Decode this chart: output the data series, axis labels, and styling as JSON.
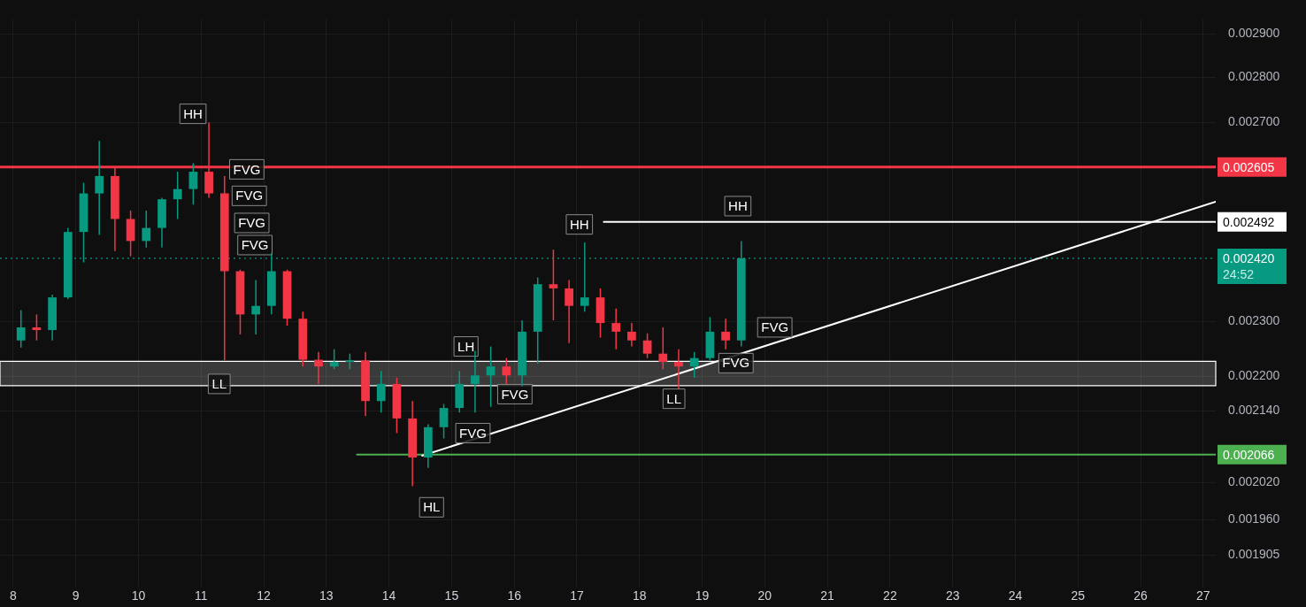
{
  "chart_data": {
    "type": "candlestick",
    "log": "y",
    "grid": true,
    "legend": false,
    "xlim": [
      7.79,
      27.2
    ],
    "ylim": [
      0.001857,
      0.002933
    ],
    "xticks": [
      8,
      9,
      10,
      11,
      12,
      13,
      14,
      15,
      16,
      17,
      18,
      19,
      20,
      21,
      22,
      23,
      24,
      25,
      26,
      27
    ],
    "yticks": [
      {
        "value": 0.0029,
        "label": "0.002900"
      },
      {
        "value": 0.0028,
        "label": "0.002800"
      },
      {
        "value": 0.0027,
        "label": "0.002700"
      },
      {
        "value": 0.0023,
        "label": "0.002300"
      },
      {
        "value": 0.0022,
        "label": "0.002200"
      },
      {
        "value": 0.00214,
        "label": "0.002140"
      },
      {
        "value": 0.00202,
        "label": "0.002020"
      },
      {
        "value": 0.00196,
        "label": "0.001960"
      },
      {
        "value": 0.001905,
        "label": "0.001905"
      }
    ],
    "series": [
      {
        "x": [
          8.125,
          8.375,
          8.625,
          8.875,
          9.125,
          9.375,
          9.625,
          9.875,
          10.125,
          10.375,
          10.625,
          10.875,
          11.125,
          11.375,
          11.625,
          11.875,
          12.125,
          12.375,
          12.625,
          12.875,
          13.125,
          13.375,
          13.625,
          13.875,
          14.125,
          14.375,
          14.625,
          14.875,
          15.125,
          15.375,
          15.625,
          15.875,
          16.125,
          16.375,
          16.625,
          16.875,
          17.125,
          17.375,
          17.625,
          17.875,
          18.125,
          18.375,
          18.625,
          18.875,
          19.125,
          19.375,
          19.625
        ],
        "ohlc": [
          [
            0.002265,
            0.002321,
            0.002252,
            0.002289
          ],
          [
            0.002289,
            0.002313,
            0.002265,
            0.002284
          ],
          [
            0.002284,
            0.00235,
            0.002265,
            0.002345
          ],
          [
            0.002345,
            0.00248,
            0.002342,
            0.002472
          ],
          [
            0.002472,
            0.002572,
            0.002412,
            0.00255
          ],
          [
            0.00255,
            0.00266,
            0.002466,
            0.002586
          ],
          [
            0.002586,
            0.002604,
            0.002434,
            0.002498
          ],
          [
            0.002498,
            0.002515,
            0.002424,
            0.002454
          ],
          [
            0.002454,
            0.002515,
            0.002441,
            0.00248
          ],
          [
            0.00248,
            0.002541,
            0.002441,
            0.002538
          ],
          [
            0.002538,
            0.002595,
            0.002498,
            0.002559
          ],
          [
            0.002559,
            0.002613,
            0.002527,
            0.002595
          ],
          [
            0.002595,
            0.0027,
            0.002541,
            0.00255
          ],
          [
            0.00255,
            0.002586,
            0.002229,
            0.002395
          ],
          [
            0.002395,
            0.002398,
            0.002276,
            0.002313
          ],
          [
            0.002313,
            0.002378,
            0.002276,
            0.002329
          ],
          [
            0.002329,
            0.00243,
            0.002313,
            0.002395
          ],
          [
            0.002395,
            0.002398,
            0.002292,
            0.002305
          ],
          [
            0.002305,
            0.002318,
            0.002218,
            0.00223
          ],
          [
            0.00223,
            0.002244,
            0.002187,
            0.002218
          ],
          [
            0.002218,
            0.002249,
            0.002213,
            0.002226
          ],
          [
            0.002226,
            0.002241,
            0.002213,
            0.002229
          ],
          [
            0.002229,
            0.002244,
            0.002131,
            0.002157
          ],
          [
            0.002157,
            0.00221,
            0.002137,
            0.002187
          ],
          [
            0.002187,
            0.002198,
            0.002102,
            0.002127
          ],
          [
            0.002127,
            0.002157,
            0.002014,
            0.002061
          ],
          [
            0.002061,
            0.002117,
            0.002044,
            0.002112
          ],
          [
            0.002112,
            0.002152,
            0.002093,
            0.002145
          ],
          [
            0.002145,
            0.00221,
            0.002137,
            0.002187
          ],
          [
            0.002187,
            0.002246,
            0.002137,
            0.002202
          ],
          [
            0.002202,
            0.002254,
            0.002147,
            0.002218
          ],
          [
            0.002218,
            0.002233,
            0.002187,
            0.002202
          ],
          [
            0.002202,
            0.002302,
            0.002183,
            0.002281
          ],
          [
            0.002281,
            0.002383,
            0.002223,
            0.00237
          ],
          [
            0.00237,
            0.002437,
            0.002302,
            0.002362
          ],
          [
            0.002362,
            0.002378,
            0.00226,
            0.002329
          ],
          [
            0.002329,
            0.002451,
            0.002318,
            0.002345
          ],
          [
            0.002345,
            0.002362,
            0.00227,
            0.002297
          ],
          [
            0.002297,
            0.002324,
            0.002249,
            0.002281
          ],
          [
            0.002281,
            0.002297,
            0.002254,
            0.002265
          ],
          [
            0.002265,
            0.002278,
            0.002233,
            0.002241
          ],
          [
            0.002241,
            0.002289,
            0.002213,
            0.002226
          ],
          [
            0.002226,
            0.002249,
            0.002179,
            0.002218
          ],
          [
            0.002218,
            0.002244,
            0.002198,
            0.002233
          ],
          [
            0.002233,
            0.002308,
            0.002229,
            0.002281
          ],
          [
            0.002281,
            0.002305,
            0.002249,
            0.002265
          ],
          [
            0.002265,
            0.002454,
            0.002254,
            0.00242
          ]
        ],
        "colors": [
          "#089981",
          "#f23645",
          "#089981",
          "#089981",
          "#089981",
          "#089981",
          "#f23645",
          "#f23645",
          "#089981",
          "#089981",
          "#089981",
          "#089981",
          "#f23645",
          "#f23645",
          "#f23645",
          "#089981",
          "#089981",
          "#f23645",
          "#f23645",
          "#f23645",
          "#089981",
          "#089981",
          "#f23645",
          "#089981",
          "#f23645",
          "#f23645",
          "#089981",
          "#089981",
          "#089981",
          "#089981",
          "#089981",
          "#f23645",
          "#089981",
          "#089981",
          "#f23645",
          "#f23645",
          "#089981",
          "#f23645",
          "#f23645",
          "#f23645",
          "#f23645",
          "#f23645",
          "#f23645",
          "#089981",
          "#089981",
          "#f23645",
          "#089981"
        ]
      },
      {
        "type": "line",
        "color": "#ffffff",
        "x": [
          14.53,
          27.2
        ],
        "values": [
          0.002064,
          0.002533
        ]
      },
      {
        "type": "line",
        "color": "#ffffff",
        "x": [
          17.43,
          27.2
        ],
        "values": [
          0.002492,
          0.002492
        ],
        "value_labels": [
          null,
          "0.002492"
        ]
      },
      {
        "type": "line",
        "color": "#4caf50",
        "x": [
          13.49,
          27.2
        ],
        "values": [
          0.002066,
          0.002066
        ],
        "value_labels": [
          null,
          "0.002066"
        ]
      }
    ],
    "ref_lines": [
      {
        "axis": "y",
        "value": 0.002605,
        "label": "0.002605",
        "color": "#f23645",
        "line_style": "solid"
      },
      {
        "axis": "y",
        "value": 0.00242,
        "label": "0.002420",
        "color": "#089981",
        "line_style": "dotted"
      }
    ],
    "bands": [
      {
        "axis": "y",
        "from": 0.002184,
        "to": 0.002227,
        "color": "#ffffff"
      }
    ],
    "annotations": [
      {
        "text": "HH",
        "x": 10.87,
        "y": 0.002719
      },
      {
        "text": "LL",
        "x": 11.29,
        "y": 0.002187
      },
      {
        "text": "LH",
        "x": 15.23,
        "y": 0.002254
      },
      {
        "text": "HL",
        "x": 14.68,
        "y": 0.00198
      },
      {
        "text": "HH",
        "x": 17.04,
        "y": 0.002487
      },
      {
        "text": "HH",
        "x": 19.57,
        "y": 0.002524
      },
      {
        "text": "LL",
        "x": 18.55,
        "y": 0.002161
      },
      {
        "text": "FVG",
        "x": 11.73,
        "y": 0.0026
      },
      {
        "text": "FVG",
        "x": 11.77,
        "y": 0.002545
      },
      {
        "text": "FVG",
        "x": 11.81,
        "y": 0.00249
      },
      {
        "text": "FVG",
        "x": 11.86,
        "y": 0.002446
      },
      {
        "text": "FVG",
        "x": 16.01,
        "y": 0.002169
      },
      {
        "text": "FVG",
        "x": 15.34,
        "y": 0.002102
      },
      {
        "text": "FVG",
        "x": 20.16,
        "y": 0.002289
      },
      {
        "text": "FVG",
        "x": 19.54,
        "y": 0.002224
      },
      "24:52"
    ]
  }
}
